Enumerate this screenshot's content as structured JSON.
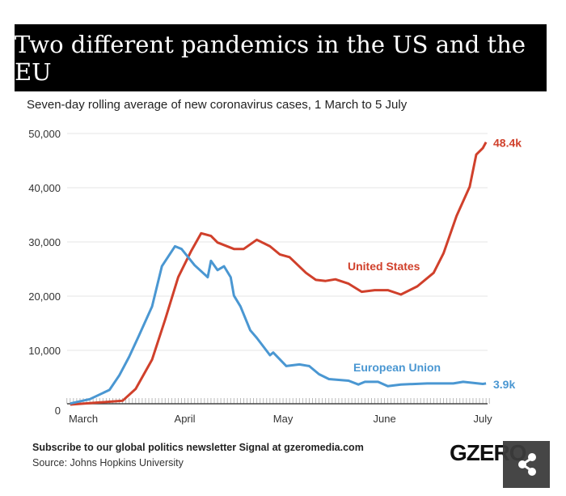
{
  "title": "Two different pandemics in the US and the EU",
  "subtitle": "Seven-day rolling average of new coronavirus cases, 1 March to 5 July",
  "footer": {
    "subscribe": "Subscribe to our global politics newsletter Signal at gzeromedia.com",
    "source": "Source: Johns Hopkins University",
    "logo": "GZERO",
    "share_icon": "share-icon"
  },
  "chart_data": {
    "type": "line",
    "xlabel": "",
    "ylabel": "",
    "ylim": [
      0,
      50000
    ],
    "grid": true,
    "y_ticks": [
      "0",
      "10,000",
      "20,000",
      "30,000",
      "40,000",
      "50,000"
    ],
    "x_ticks": [
      "March",
      "April",
      "May",
      "June",
      "July"
    ],
    "series": [
      {
        "name": "United States",
        "color": "#d0402b",
        "end_label": "48.4k",
        "points": [
          [
            "Feb 26",
            0
          ],
          [
            "Mar 13",
            700
          ],
          [
            "Mar 17",
            2900
          ],
          [
            "Mar 22",
            8300
          ],
          [
            "Mar 26",
            15700
          ],
          [
            "Mar 30",
            23500
          ],
          [
            "Apr 3",
            28400
          ],
          [
            "Apr 6",
            31600
          ],
          [
            "Apr 9",
            31100
          ],
          [
            "Apr 11",
            29900
          ],
          [
            "Apr 16",
            28700
          ],
          [
            "Apr 19",
            28700
          ],
          [
            "Apr 23",
            30400
          ],
          [
            "Apr 27",
            29200
          ],
          [
            "Apr 30",
            27700
          ],
          [
            "May 3",
            27200
          ],
          [
            "May 8",
            24300
          ],
          [
            "May 11",
            23000
          ],
          [
            "May 14",
            22800
          ],
          [
            "May 17",
            23100
          ],
          [
            "May 21",
            22300
          ],
          [
            "May 25",
            20800
          ],
          [
            "May 29",
            21100
          ],
          [
            "Jun 2",
            21100
          ],
          [
            "Jun 6",
            20300
          ],
          [
            "Jun 11",
            21800
          ],
          [
            "Jun 16",
            24300
          ],
          [
            "Jun 19",
            27900
          ],
          [
            "Jun 23",
            34800
          ],
          [
            "Jun 27",
            40200
          ],
          [
            "Jun 29",
            46100
          ],
          [
            "Jul 1",
            47300
          ],
          [
            "Jul 2",
            48400
          ]
        ]
      },
      {
        "name": "European Union",
        "color": "#4a97d2",
        "end_label": "3.9k",
        "points": [
          [
            "Feb 26",
            200
          ],
          [
            "Mar 3",
            1000
          ],
          [
            "Mar 9",
            2700
          ],
          [
            "Mar 12",
            5400
          ],
          [
            "Mar 15",
            8800
          ],
          [
            "Mar 18",
            12700
          ],
          [
            "Mar 22",
            18100
          ],
          [
            "Mar 25",
            25500
          ],
          [
            "Mar 29",
            29200
          ],
          [
            "Mar 31",
            28700
          ],
          [
            "Apr 4",
            25700
          ],
          [
            "Apr 8",
            23500
          ],
          [
            "Apr 9",
            26500
          ],
          [
            "Apr 11",
            24800
          ],
          [
            "Apr 13",
            25500
          ],
          [
            "Apr 15",
            23500
          ],
          [
            "Apr 16",
            20100
          ],
          [
            "Apr 18",
            18100
          ],
          [
            "Apr 21",
            13700
          ],
          [
            "Apr 23",
            12300
          ],
          [
            "Apr 27",
            9100
          ],
          [
            "Apr 28",
            9600
          ],
          [
            "May 2",
            7100
          ],
          [
            "May 6",
            7400
          ],
          [
            "May 9",
            7100
          ],
          [
            "May 12",
            5600
          ],
          [
            "May 15",
            4700
          ],
          [
            "May 21",
            4400
          ],
          [
            "May 24",
            3700
          ],
          [
            "May 26",
            4200
          ],
          [
            "May 30",
            4200
          ],
          [
            "Jun 2",
            3400
          ],
          [
            "Jun 6",
            3700
          ],
          [
            "Jun 14",
            3900
          ],
          [
            "Jun 22",
            3900
          ],
          [
            "Jun 25",
            4200
          ],
          [
            "Jul 1",
            3800
          ],
          [
            "Jul 2",
            3900
          ]
        ]
      }
    ]
  }
}
